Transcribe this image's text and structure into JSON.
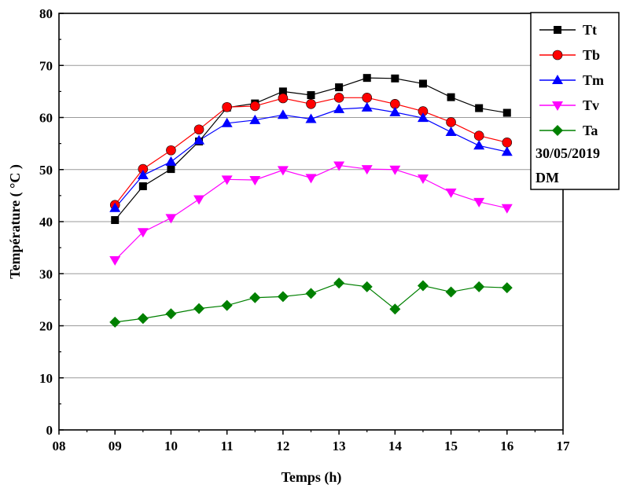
{
  "chart_data": {
    "type": "line",
    "xlabel": "Temps (h)",
    "ylabel": "Température ( °C )",
    "xlim": [
      8,
      17
    ],
    "ylim": [
      0,
      80
    ],
    "x_ticks": [
      8,
      9,
      10,
      11,
      12,
      13,
      14,
      15,
      16,
      17
    ],
    "x_tick_labels": [
      "08",
      "09",
      "10",
      "11",
      "12",
      "13",
      "14",
      "15",
      "16",
      "17"
    ],
    "y_ticks": [
      0,
      10,
      20,
      30,
      40,
      50,
      60,
      70,
      80
    ],
    "y_tick_labels": [
      "0",
      "10",
      "20",
      "30",
      "40",
      "50",
      "60",
      "70",
      "80"
    ],
    "grid": "horizontal",
    "legend_position": "top-right",
    "legend_notes": [
      "30/05/2019",
      "DM"
    ],
    "x": [
      9,
      9.5,
      10,
      10.5,
      11,
      11.5,
      12,
      12.5,
      13,
      13.5,
      14,
      14.5,
      15,
      15.5,
      16
    ],
    "series": [
      {
        "name": "Tt",
        "color": "#000000",
        "marker": "square",
        "values": [
          40.3,
          46.8,
          50.1,
          55.4,
          61.9,
          62.7,
          65.0,
          64.3,
          65.8,
          67.6,
          67.5,
          66.5,
          63.9,
          61.8,
          60.9
        ]
      },
      {
        "name": "Tb",
        "color": "#ff0000",
        "marker": "circle",
        "values": [
          43.2,
          50.1,
          53.7,
          57.7,
          62.0,
          62.2,
          63.7,
          62.6,
          63.8,
          63.8,
          62.6,
          61.2,
          59.1,
          56.5,
          55.2
        ]
      },
      {
        "name": "Tm",
        "color": "#0000ff",
        "marker": "triangle-up",
        "values": [
          42.6,
          48.9,
          51.5,
          55.6,
          58.9,
          59.5,
          60.5,
          59.7,
          61.6,
          61.9,
          61.0,
          59.9,
          57.2,
          54.6,
          53.4
        ]
      },
      {
        "name": "Tv",
        "color": "#ff00ff",
        "marker": "triangle-down",
        "values": [
          32.6,
          38.0,
          40.7,
          44.3,
          48.1,
          48.0,
          49.9,
          48.4,
          50.8,
          50.1,
          50.0,
          48.3,
          45.6,
          43.8,
          42.6
        ]
      },
      {
        "name": "Ta",
        "color": "#008000",
        "marker": "diamond",
        "values": [
          20.7,
          21.4,
          22.3,
          23.3,
          23.9,
          25.4,
          25.6,
          26.2,
          28.2,
          27.5,
          23.2,
          27.7,
          26.5,
          27.5,
          27.3
        ]
      }
    ]
  }
}
